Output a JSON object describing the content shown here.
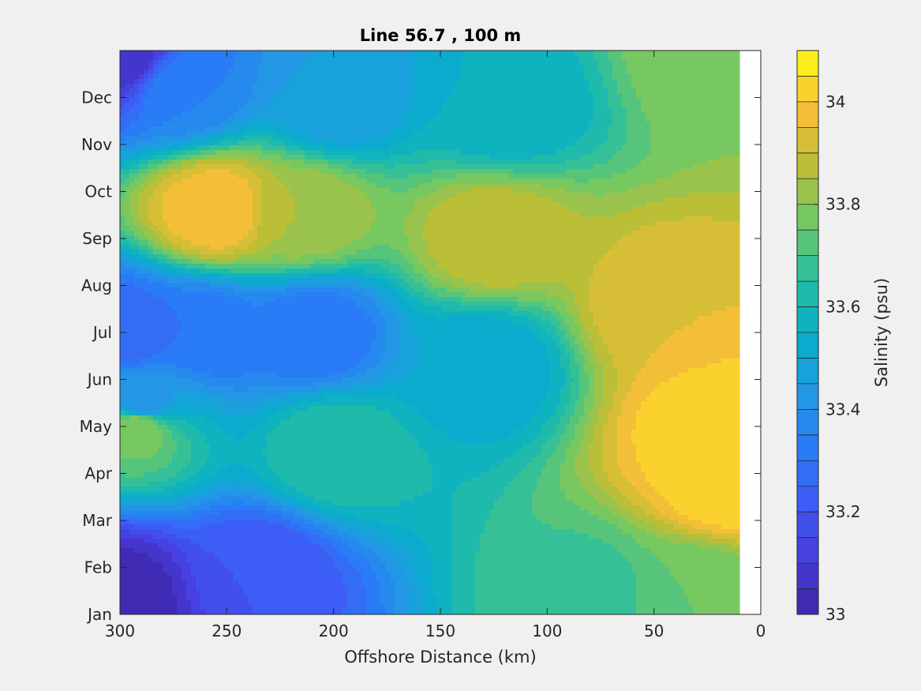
{
  "chart_data": {
    "type": "heatmap",
    "title": "Line 56.7 , 100 m",
    "xlabel": "Offshore Distance (km)",
    "ylabel": "",
    "xlim": [
      300,
      0
    ],
    "x_ticks": [
      "300",
      "250",
      "200",
      "150",
      "100",
      "50",
      "0"
    ],
    "x_tick_values": [
      300,
      250,
      200,
      150,
      100,
      50,
      0
    ],
    "y_ticks": [
      "Jan",
      "Feb",
      "Mar",
      "Apr",
      "May",
      "Jun",
      "Jul",
      "Aug",
      "Sep",
      "Oct",
      "Nov",
      "Dec"
    ],
    "y_tick_values": [
      1,
      2,
      3,
      4,
      5,
      6,
      7,
      8,
      9,
      10,
      11,
      12
    ],
    "ylim": [
      1,
      13
    ],
    "data_x_extent": [
      300,
      10
    ],
    "colorbar": {
      "label": "Salinity (psu)",
      "range": [
        33.0,
        34.1
      ],
      "levels": 22,
      "ticks": [
        "33",
        "33.2",
        "33.4",
        "33.6",
        "33.8",
        "34"
      ],
      "tick_values": [
        33.0,
        33.2,
        33.4,
        33.6,
        33.8,
        34.0
      ],
      "colormap": "parula"
    },
    "features": [
      {
        "x": 300,
        "y": 1.4,
        "value": 33.02
      },
      {
        "x": 292,
        "y": 5.0,
        "value": 33.8
      },
      {
        "x": 290,
        "y": 5.5,
        "value": 33.4
      },
      {
        "x": 298,
        "y": 7.0,
        "value": 33.25
      },
      {
        "x": 255,
        "y": 9.6,
        "value": 34.0
      },
      {
        "x": 215,
        "y": 9.5,
        "value": 33.85
      },
      {
        "x": 260,
        "y": 7.0,
        "value": 33.3
      },
      {
        "x": 210,
        "y": 7.0,
        "value": 33.3
      },
      {
        "x": 235,
        "y": 1.9,
        "value": 33.2
      },
      {
        "x": 300,
        "y": 12.9,
        "value": 33.05
      },
      {
        "x": 270,
        "y": 12.2,
        "value": 33.35
      },
      {
        "x": 130,
        "y": 6.3,
        "value": 33.5
      },
      {
        "x": 125,
        "y": 9.0,
        "value": 33.9
      },
      {
        "x": 120,
        "y": 11.8,
        "value": 33.55
      },
      {
        "x": 200,
        "y": 12.0,
        "value": 33.45
      },
      {
        "x": 200,
        "y": 4.5,
        "value": 33.65
      },
      {
        "x": 20,
        "y": 5.0,
        "value": 34.05
      },
      {
        "x": 15,
        "y": 3.8,
        "value": 34.05
      },
      {
        "x": 45,
        "y": 7.5,
        "value": 33.95
      },
      {
        "x": 30,
        "y": 1.5,
        "value": 33.75
      },
      {
        "x": 80,
        "y": 1.5,
        "value": 33.68
      },
      {
        "x": 20,
        "y": 12.9,
        "value": 33.8
      }
    ]
  }
}
